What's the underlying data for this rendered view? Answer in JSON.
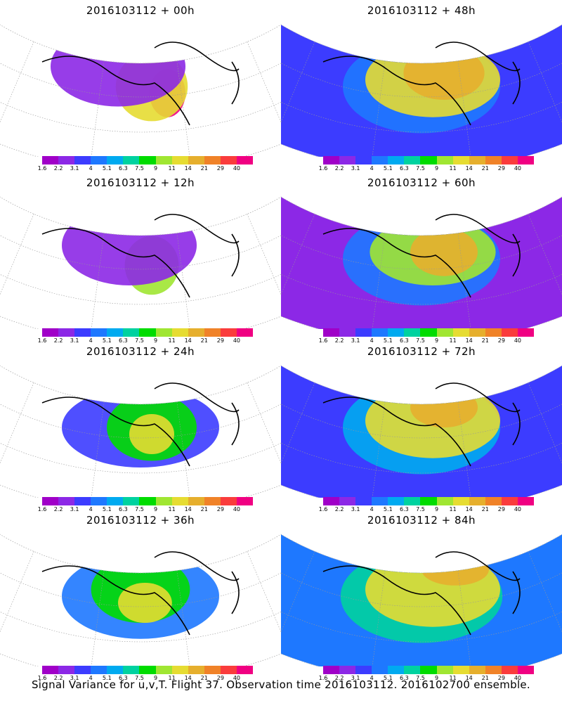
{
  "panels": [
    {
      "title": "2016103112 + 00h"
    },
    {
      "title": "2016103112 + 48h"
    },
    {
      "title": "2016103112 + 12h"
    },
    {
      "title": "2016103112 + 60h"
    },
    {
      "title": "2016103112 + 24h"
    },
    {
      "title": "2016103112 + 72h"
    },
    {
      "title": "2016103112 + 36h"
    },
    {
      "title": "2016103112 + 84h"
    }
  ],
  "colorbar": {
    "labels": [
      "1.6",
      "2.2",
      "3.1",
      "4",
      "5.1",
      "6.3",
      "7.5",
      "9",
      "11",
      "14",
      "21",
      "29",
      "40"
    ],
    "colors": [
      "#a000c8",
      "#8c28e6",
      "#3c3cff",
      "#1e78ff",
      "#00aaf0",
      "#00d2a0",
      "#00dc00",
      "#a0e632",
      "#e6dc32",
      "#e6af2d",
      "#f08228",
      "#fa3c3c",
      "#f00082"
    ]
  },
  "footer": "Signal Variance for u,v,T. Flight 37. Observation time 2016103112. 2016102700 ensemble."
}
